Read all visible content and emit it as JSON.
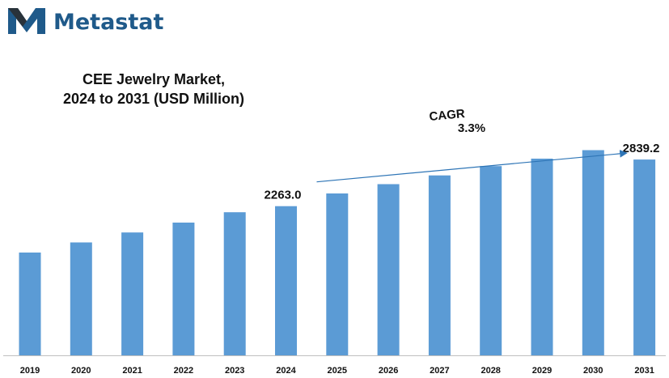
{
  "brand": {
    "name": "Metastat",
    "color": "#1f5a8a"
  },
  "chart_data": {
    "type": "bar",
    "title_lines": [
      "CEE Jewelry Market,",
      "2024 to 2031 (USD Million)"
    ],
    "categories": [
      "2019",
      "2020",
      "2021",
      "2022",
      "2023",
      "2024",
      "2025",
      "2026",
      "2027",
      "2028",
      "2029",
      "2030",
      "2031"
    ],
    "values": [
      1690,
      1815,
      1938,
      2060,
      2188,
      2263.0,
      2420,
      2535,
      2643,
      2758,
      2850,
      2955,
      2839.2
    ],
    "data_labels": [
      {
        "index": 5,
        "text": "2263.0"
      },
      {
        "index": 12,
        "text": "2839.2"
      }
    ],
    "annotation": {
      "label": "CAGR",
      "value": "3.3%",
      "from_index": 5,
      "to_index": 12
    },
    "bar_color": "#5b9bd5",
    "axis_color": "#bfbfbf",
    "grid": false,
    "legend": "none"
  }
}
